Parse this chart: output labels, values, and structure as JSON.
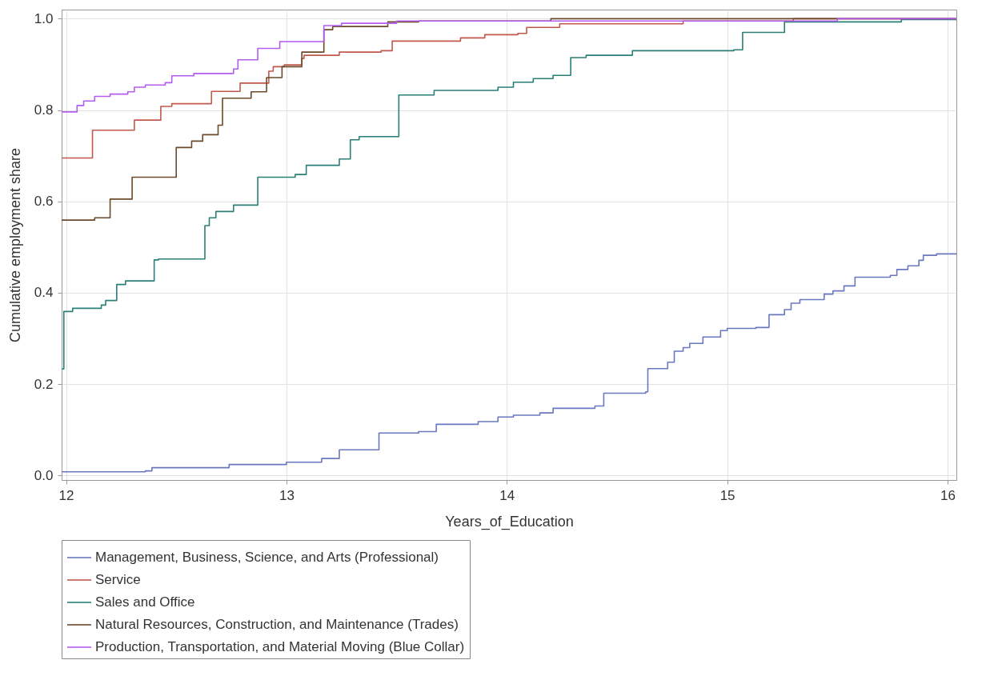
{
  "chart_data": {
    "type": "step",
    "xlabel": "Years_of_Education",
    "ylabel": "Cumulative employment share",
    "xlim": [
      11.98,
      16.04
    ],
    "ylim": [
      -0.01,
      1.02
    ],
    "xticks": [
      12,
      13,
      14,
      15,
      16
    ],
    "yticks": [
      {
        "value": 0,
        "label": "0.0"
      },
      0.2,
      0.4,
      0.6,
      0.8,
      {
        "value": 1,
        "label": "1.0"
      }
    ],
    "grid": true,
    "legend": "bottom",
    "series": [
      {
        "name": "Management, Business, Science, and Arts (Professional)",
        "color": "#6a78be",
        "x": [
          11.98,
          12.36,
          12.39,
          12.74,
          13.0,
          13.16,
          13.24,
          13.42,
          13.6,
          13.68,
          13.87,
          13.96,
          14.03,
          14.15,
          14.21,
          14.4,
          14.44,
          14.63,
          14.64,
          14.73,
          14.76,
          14.8,
          14.83,
          14.89,
          14.97,
          15.0,
          15.13,
          15.19,
          15.26,
          15.29,
          15.33,
          15.44,
          15.48,
          15.53,
          15.58,
          15.74,
          15.77,
          15.82,
          15.87,
          15.89,
          15.95,
          16.04
        ],
        "values": [
          0.008,
          0.01,
          0.017,
          0.024,
          0.029,
          0.037,
          0.056,
          0.093,
          0.096,
          0.112,
          0.118,
          0.128,
          0.132,
          0.137,
          0.147,
          0.152,
          0.18,
          0.183,
          0.234,
          0.248,
          0.272,
          0.28,
          0.289,
          0.303,
          0.317,
          0.322,
          0.324,
          0.352,
          0.363,
          0.377,
          0.385,
          0.397,
          0.404,
          0.415,
          0.434,
          0.438,
          0.451,
          0.459,
          0.471,
          0.482,
          0.485,
          0.485
        ]
      },
      {
        "name": "Service",
        "color": "#c0594b",
        "x": [
          11.98,
          12.12,
          12.31,
          12.43,
          12.48,
          12.66,
          12.79,
          12.92,
          12.94,
          12.99,
          13.07,
          13.08,
          13.24,
          13.43,
          13.48,
          13.79,
          13.9,
          14.05,
          14.09,
          14.24,
          14.8,
          15.3,
          16.04
        ],
        "values": [
          0.695,
          0.756,
          0.778,
          0.808,
          0.814,
          0.841,
          0.859,
          0.885,
          0.895,
          0.899,
          0.913,
          0.92,
          0.927,
          0.93,
          0.951,
          0.958,
          0.965,
          0.968,
          0.981,
          0.989,
          0.995,
          1.0,
          1.0
        ]
      },
      {
        "name": "Sales and Office",
        "color": "#2a7f77",
        "x": [
          11.98,
          11.99,
          12.03,
          12.16,
          12.18,
          12.23,
          12.27,
          12.4,
          12.42,
          12.63,
          12.65,
          12.68,
          12.76,
          12.87,
          13.04,
          13.09,
          13.24,
          13.29,
          13.33,
          13.51,
          13.67,
          13.96,
          14.03,
          14.12,
          14.21,
          14.29,
          14.36,
          14.57,
          15.03,
          15.07,
          15.26,
          15.79,
          16.04
        ],
        "values": [
          0.233,
          0.359,
          0.366,
          0.373,
          0.383,
          0.418,
          0.426,
          0.472,
          0.474,
          0.547,
          0.564,
          0.578,
          0.592,
          0.653,
          0.659,
          0.679,
          0.693,
          0.735,
          0.742,
          0.833,
          0.843,
          0.85,
          0.861,
          0.869,
          0.876,
          0.915,
          0.92,
          0.93,
          0.932,
          0.97,
          0.993,
          0.998,
          1.0
        ]
      },
      {
        "name": "Natural Resources, Construction, and Maintenance (Trades)",
        "color": "#6b4a2a",
        "x": [
          11.98,
          12.13,
          12.2,
          12.3,
          12.5,
          12.57,
          12.62,
          12.69,
          12.71,
          12.84,
          12.91,
          12.98,
          13.07,
          13.17,
          13.21,
          13.46,
          13.6,
          14.2,
          16.04
        ],
        "values": [
          0.559,
          0.564,
          0.605,
          0.653,
          0.718,
          0.732,
          0.746,
          0.767,
          0.826,
          0.84,
          0.871,
          0.895,
          0.927,
          0.976,
          0.983,
          0.993,
          0.995,
          1.0,
          1.0
        ]
      },
      {
        "name": "Production, Transportation, and Material Moving (Blue Collar)",
        "color": "#b35cf0",
        "x": [
          11.98,
          12.05,
          12.08,
          12.13,
          12.2,
          12.28,
          12.31,
          12.36,
          12.45,
          12.48,
          12.58,
          12.76,
          12.78,
          12.87,
          12.97,
          13.17,
          13.25,
          13.5,
          15.5,
          16.04
        ],
        "values": [
          0.796,
          0.81,
          0.82,
          0.83,
          0.835,
          0.84,
          0.85,
          0.855,
          0.86,
          0.875,
          0.88,
          0.89,
          0.91,
          0.935,
          0.95,
          0.985,
          0.99,
          0.995,
          1.0,
          1.0
        ]
      }
    ]
  }
}
